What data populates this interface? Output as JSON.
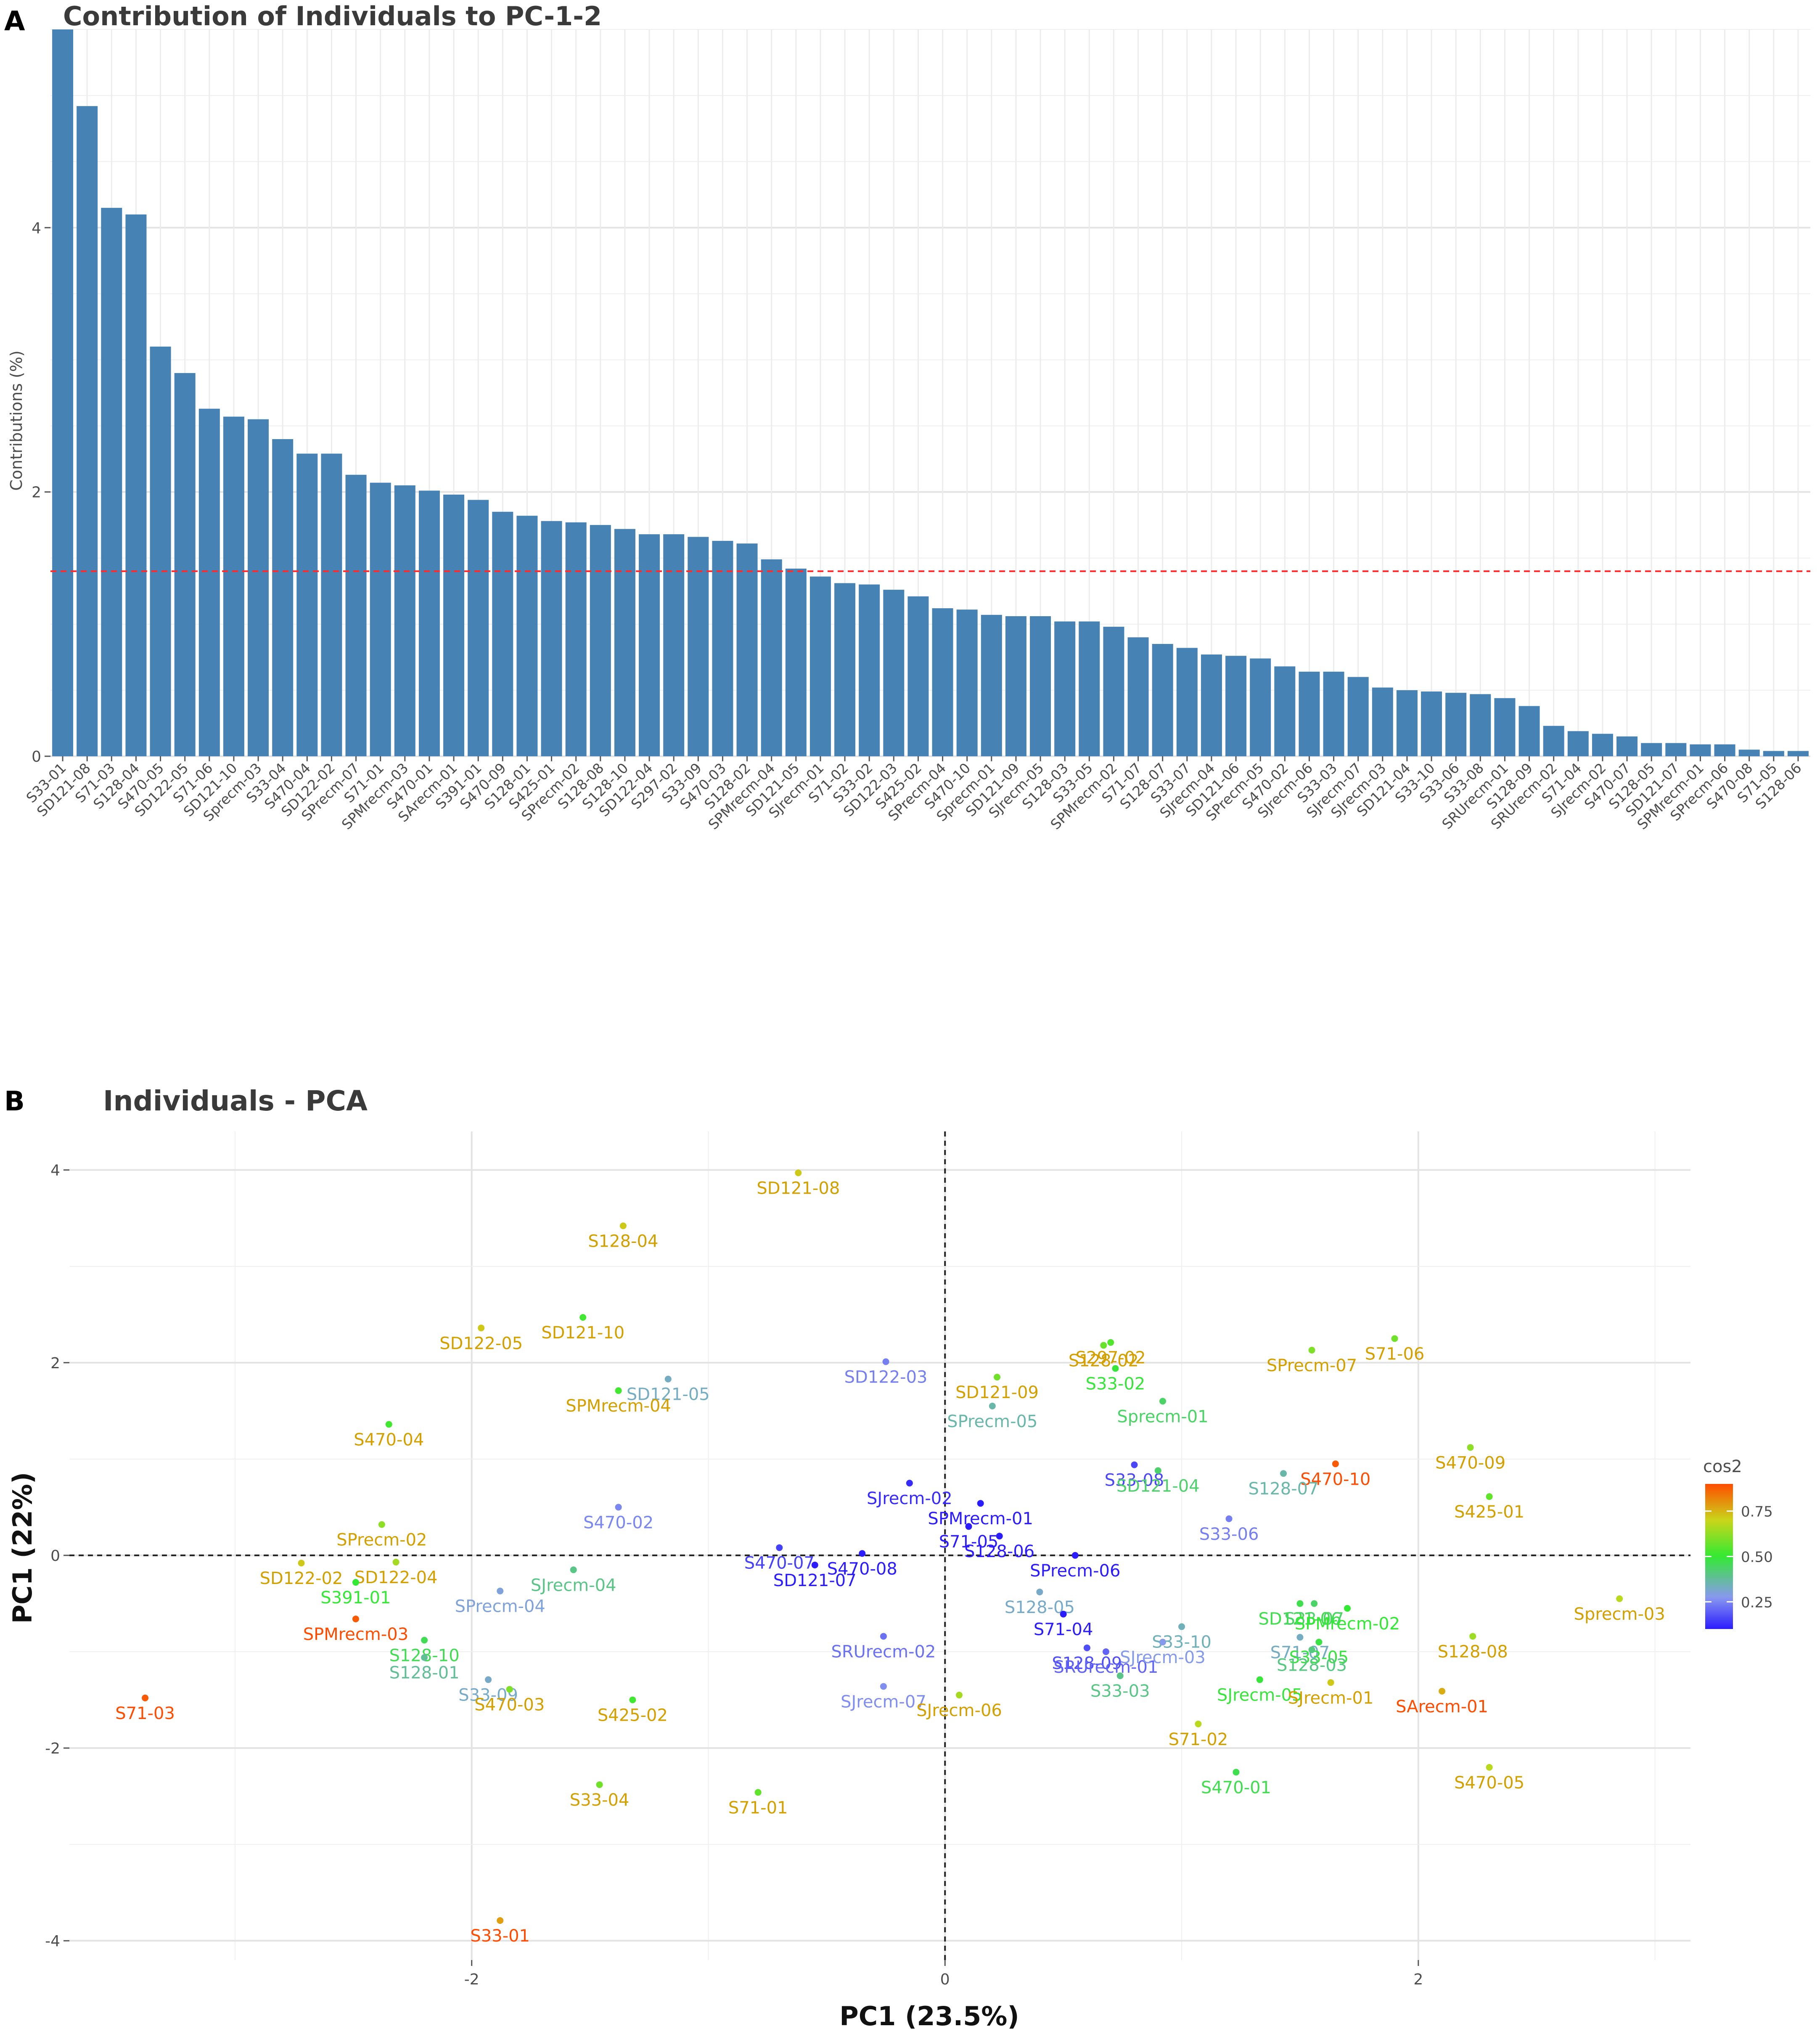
{
  "panel_letters": [
    "A",
    "B"
  ],
  "colors": {
    "bar": "#4682B4",
    "reference_line": "#ff2a2a",
    "gradient_low": "#2b1cff",
    "gradient_mid": "#33e933",
    "gradient_high": "#ff4c00"
  },
  "chart_data": [
    {
      "type": "bar",
      "title": "Contribution of Individuals to PC-1-2",
      "xlabel": "",
      "ylabel": "Contributions (%)",
      "ylim": [
        0,
        5.5
      ],
      "yticks": [
        "0",
        "2",
        "4"
      ],
      "reference_line": 1.4,
      "categories": [
        "S33-01",
        "SD121-08",
        "S71-03",
        "S128-04",
        "S470-05",
        "SD122-05",
        "S71-06",
        "SD121-10",
        "Sprecm-03",
        "S33-04",
        "S470-04",
        "SD122-02",
        "SPrecm-07",
        "S71-01",
        "SPMrecm-03",
        "S470-01",
        "SArecm-01",
        "S391-01",
        "S470-09",
        "S128-01",
        "S425-01",
        "SPrecm-02",
        "S128-08",
        "S128-10",
        "SD122-04",
        "S297-02",
        "S33-09",
        "S470-03",
        "S128-02",
        "SPMrecm-04",
        "SD121-05",
        "SJrecm-01",
        "S71-02",
        "S33-02",
        "SD122-03",
        "S425-02",
        "SPrecm-04",
        "S470-10",
        "Sprecm-01",
        "SD121-09",
        "SJrecm-05",
        "S128-03",
        "S33-05",
        "SPMrecm-02",
        "S71-07",
        "S128-07",
        "S33-07",
        "SJrecm-04",
        "SD121-06",
        "SPrecm-05",
        "S470-02",
        "SJrecm-06",
        "S33-03",
        "SJrecm-07",
        "SJrecm-03",
        "SD121-04",
        "S33-10",
        "S33-06",
        "S33-08",
        "SRUrecm-01",
        "S128-09",
        "SRUrecm-02",
        "S71-04",
        "SJrecm-02",
        "S470-07",
        "S128-05",
        "SD121-07",
        "SPMrecm-01",
        "SPrecm-06",
        "S470-08",
        "S71-05",
        "S128-06"
      ],
      "values": [
        5.5,
        4.92,
        4.15,
        4.1,
        3.1,
        2.9,
        2.63,
        2.57,
        2.55,
        2.4,
        2.29,
        2.29,
        2.13,
        2.07,
        2.05,
        2.01,
        1.98,
        1.94,
        1.85,
        1.82,
        1.78,
        1.77,
        1.75,
        1.72,
        1.68,
        1.68,
        1.66,
        1.63,
        1.61,
        1.49,
        1.42,
        1.36,
        1.31,
        1.3,
        1.26,
        1.21,
        1.12,
        1.11,
        1.07,
        1.06,
        1.06,
        1.02,
        1.02,
        0.98,
        0.9,
        0.85,
        0.82,
        0.77,
        0.76,
        0.74,
        0.68,
        0.64,
        0.64,
        0.6,
        0.52,
        0.5,
        0.49,
        0.48,
        0.47,
        0.44,
        0.38,
        0.23,
        0.19,
        0.17,
        0.15,
        0.1,
        0.1,
        0.09,
        0.09,
        0.05,
        0.04,
        0.04
      ]
    },
    {
      "type": "scatter",
      "title": "Individuals - PCA",
      "xlabel": "PC1 (23.5%)",
      "ylabel": "PC1 (22%)",
      "xlim": [
        -3.7,
        3.15
      ],
      "ylim": [
        -4.2,
        4.4
      ],
      "xticks": [
        "-2",
        "0",
        "2"
      ],
      "yticks": [
        "4",
        "2",
        "0",
        "-2",
        "-4"
      ],
      "legend": {
        "title": "cos2",
        "ticks": [
          "0.75",
          "0.50",
          "0.25"
        ],
        "range": [
          0.1,
          0.9
        ],
        "placement": "right"
      },
      "points": [
        {
          "label": "SD121-08",
          "x": -0.62,
          "y": 3.97,
          "cos2": 0.72
        },
        {
          "label": "S128-04",
          "x": -1.36,
          "y": 3.42,
          "cos2": 0.72
        },
        {
          "label": "SD122-05",
          "x": -1.96,
          "y": 2.36,
          "cos2": 0.72
        },
        {
          "label": "SD121-10",
          "x": -1.53,
          "y": 2.47,
          "cos2": 0.52
        },
        {
          "label": "SD121-05",
          "x": -1.17,
          "y": 1.83,
          "cos2": 0.33
        },
        {
          "label": "SD122-03",
          "x": -0.25,
          "y": 2.01,
          "cos2": 0.24
        },
        {
          "label": "SPMrecm-04",
          "x": -1.38,
          "y": 1.71,
          "cos2": 0.52
        },
        {
          "label": "S470-04",
          "x": -2.35,
          "y": 1.36,
          "cos2": 0.52
        },
        {
          "label": "S470-02",
          "x": -1.38,
          "y": 0.5,
          "cos2": 0.25
        },
        {
          "label": "SPrecm-02",
          "x": -2.38,
          "y": 0.32,
          "cos2": 0.62
        },
        {
          "label": "SD122-02",
          "x": -2.72,
          "y": -0.08,
          "cos2": 0.72
        },
        {
          "label": "SD122-04",
          "x": -2.32,
          "y": -0.07,
          "cos2": 0.65
        },
        {
          "label": "SJrecm-04",
          "x": -1.57,
          "y": -0.15,
          "cos2": 0.4
        },
        {
          "label": "S391-01",
          "x": -2.49,
          "y": -0.28,
          "cos2": 0.5
        },
        {
          "label": "SPrecm-04",
          "x": -1.88,
          "y": -0.37,
          "cos2": 0.3
        },
        {
          "label": "SPMrecm-03",
          "x": -2.49,
          "y": -0.66,
          "cos2": 0.88
        },
        {
          "label": "S128-10",
          "x": -2.2,
          "y": -0.88,
          "cos2": 0.46
        },
        {
          "label": "S128-01",
          "x": -2.2,
          "y": -1.06,
          "cos2": 0.38
        },
        {
          "label": "S33-09",
          "x": -1.93,
          "y": -1.29,
          "cos2": 0.32
        },
        {
          "label": "S470-03",
          "x": -1.84,
          "y": -1.39,
          "cos2": 0.6
        },
        {
          "label": "S425-02",
          "x": -1.32,
          "y": -1.5,
          "cos2": 0.52
        },
        {
          "label": "S71-03",
          "x": -3.38,
          "y": -1.48,
          "cos2": 0.88
        },
        {
          "label": "S33-04",
          "x": -1.46,
          "y": -2.38,
          "cos2": 0.58
        },
        {
          "label": "S33-01",
          "x": -1.88,
          "y": -3.79,
          "cos2": 0.78
        },
        {
          "label": "S71-01",
          "x": -0.79,
          "y": -2.46,
          "cos2": 0.56
        },
        {
          "label": "SJrecm-02",
          "x": -0.15,
          "y": 0.75,
          "cos2": 0.12
        },
        {
          "label": "S470-07",
          "x": -0.7,
          "y": 0.08,
          "cos2": 0.15
        },
        {
          "label": "S470-08",
          "x": -0.35,
          "y": 0.02,
          "cos2": 0.08
        },
        {
          "label": "SD121-07",
          "x": -0.55,
          "y": -0.1,
          "cos2": 0.06
        },
        {
          "label": "SRUrecm-02",
          "x": -0.26,
          "y": -0.84,
          "cos2": 0.22
        },
        {
          "label": "SJrecm-07",
          "x": -0.26,
          "y": -1.36,
          "cos2": 0.26
        },
        {
          "label": "SJrecm-06",
          "x": 0.06,
          "y": -1.45,
          "cos2": 0.65
        },
        {
          "label": "SPMrecm-01",
          "x": 0.15,
          "y": 0.54,
          "cos2": 0.06
        },
        {
          "label": "S71-05",
          "x": 0.1,
          "y": 0.3,
          "cos2": 0.04
        },
        {
          "label": "S128-06",
          "x": 0.23,
          "y": 0.2,
          "cos2": 0.03
        },
        {
          "label": "SPrecm-06",
          "x": 0.55,
          "y": 0.0,
          "cos2": 0.05
        },
        {
          "label": "S128-05",
          "x": 0.4,
          "y": -0.38,
          "cos2": 0.32
        },
        {
          "label": "S71-04",
          "x": 0.5,
          "y": -0.61,
          "cos2": 0.1
        },
        {
          "label": "S128-09",
          "x": 0.6,
          "y": -0.96,
          "cos2": 0.17
        },
        {
          "label": "SRUrecm-01",
          "x": 0.68,
          "y": -1.0,
          "cos2": 0.2
        },
        {
          "label": "SD121-09",
          "x": 0.22,
          "y": 1.85,
          "cos2": 0.58
        },
        {
          "label": "SPrecm-05",
          "x": 0.2,
          "y": 1.55,
          "cos2": 0.36
        },
        {
          "label": "S128-02",
          "x": 0.67,
          "y": 2.18,
          "cos2": 0.57
        },
        {
          "label": "S297-02",
          "x": 0.7,
          "y": 2.21,
          "cos2": 0.54
        },
        {
          "label": "S33-02",
          "x": 0.72,
          "y": 1.94,
          "cos2": 0.49
        },
        {
          "label": "Sprecm-01",
          "x": 0.92,
          "y": 1.6,
          "cos2": 0.44
        },
        {
          "label": "S33-08",
          "x": 0.8,
          "y": 0.94,
          "cos2": 0.16
        },
        {
          "label": "SD121-04",
          "x": 0.9,
          "y": 0.88,
          "cos2": 0.43
        },
        {
          "label": "SPrecm-07",
          "x": 1.55,
          "y": 2.13,
          "cos2": 0.6
        },
        {
          "label": "S71-06",
          "x": 1.9,
          "y": 2.25,
          "cos2": 0.58
        },
        {
          "label": "S470-10",
          "x": 1.65,
          "y": 0.95,
          "cos2": 0.88
        },
        {
          "label": "S470-09",
          "x": 2.22,
          "y": 1.12,
          "cos2": 0.62
        },
        {
          "label": "S128-07",
          "x": 1.43,
          "y": 0.85,
          "cos2": 0.36
        },
        {
          "label": "S33-06",
          "x": 1.2,
          "y": 0.38,
          "cos2": 0.24
        },
        {
          "label": "S425-01",
          "x": 2.3,
          "y": 0.61,
          "cos2": 0.56
        },
        {
          "label": "SD121-06",
          "x": 1.5,
          "y": -0.5,
          "cos2": 0.47
        },
        {
          "label": "S33-07",
          "x": 1.56,
          "y": -0.5,
          "cos2": 0.44
        },
        {
          "label": "SPMrecm-02",
          "x": 1.7,
          "y": -0.55,
          "cos2": 0.5
        },
        {
          "label": "S71-07",
          "x": 1.5,
          "y": -0.85,
          "cos2": 0.33
        },
        {
          "label": "S33-10",
          "x": 1.0,
          "y": -0.74,
          "cos2": 0.34
        },
        {
          "label": "SJrecm-03",
          "x": 0.92,
          "y": -0.9,
          "cos2": 0.28
        },
        {
          "label": "S33-05",
          "x": 1.58,
          "y": -0.9,
          "cos2": 0.48
        },
        {
          "label": "S128-03",
          "x": 1.55,
          "y": -0.98,
          "cos2": 0.41
        },
        {
          "label": "S33-03",
          "x": 0.74,
          "y": -1.25,
          "cos2": 0.4
        },
        {
          "label": "SJrecm-05",
          "x": 1.33,
          "y": -1.29,
          "cos2": 0.49
        },
        {
          "label": "SJrecm-01",
          "x": 1.63,
          "y": -1.32,
          "cos2": 0.72
        },
        {
          "label": "S128-08",
          "x": 2.23,
          "y": -0.84,
          "cos2": 0.64
        },
        {
          "label": "Sprecm-03",
          "x": 2.85,
          "y": -0.45,
          "cos2": 0.68
        },
        {
          "label": "SArecm-01",
          "x": 2.1,
          "y": -1.41,
          "cos2": 0.76
        },
        {
          "label": "S71-02",
          "x": 1.07,
          "y": -1.75,
          "cos2": 0.68
        },
        {
          "label": "S470-01",
          "x": 1.23,
          "y": -2.25,
          "cos2": 0.47
        },
        {
          "label": "S470-05",
          "x": 2.3,
          "y": -2.2,
          "cos2": 0.68
        }
      ]
    }
  ]
}
